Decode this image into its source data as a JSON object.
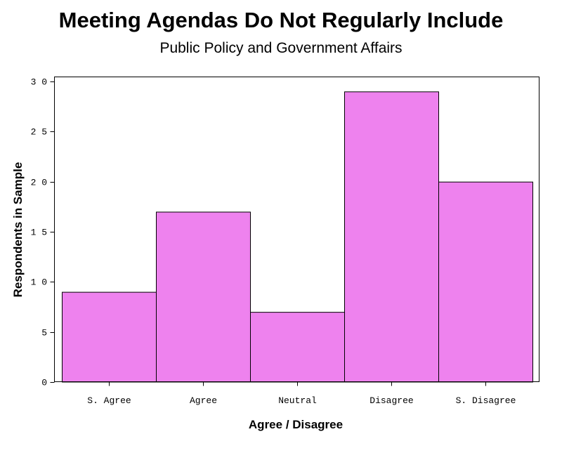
{
  "chart_data": {
    "type": "bar",
    "title": "Meeting Agendas Do Not Regularly Include",
    "subtitle": "Public Policy and Government Affairs",
    "xlabel": "Agree / Disagree",
    "ylabel": "Respondents in Sample",
    "categories": [
      "S. Agree",
      "Agree",
      "Neutral",
      "Disagree",
      "S. Disagree"
    ],
    "values": [
      9,
      17,
      7,
      29,
      20
    ],
    "ylim": [
      0,
      30
    ],
    "yticks": [
      0,
      5,
      10,
      15,
      20,
      25,
      30
    ],
    "ytick_labels": [
      "0",
      "5",
      "1 0",
      "1 5",
      "2 0",
      "2 5",
      "3 0"
    ],
    "bar_color": "#ee82ee",
    "bar_edge_color": "#000000",
    "grid": false,
    "legend": "none"
  }
}
